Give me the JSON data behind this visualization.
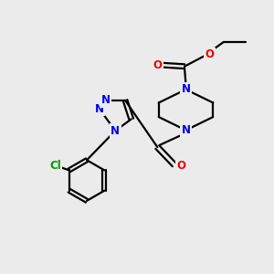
{
  "bg_color": "#ebebeb",
  "bond_color": "#000000",
  "N_color": "#0000ee",
  "O_color": "#ee0000",
  "Cl_color": "#009900",
  "line_width": 1.6,
  "font_size": 8.5,
  "fig_size": [
    3.0,
    3.0
  ],
  "dpi": 100,
  "xlim": [
    0,
    10
  ],
  "ylim": [
    0,
    10
  ]
}
